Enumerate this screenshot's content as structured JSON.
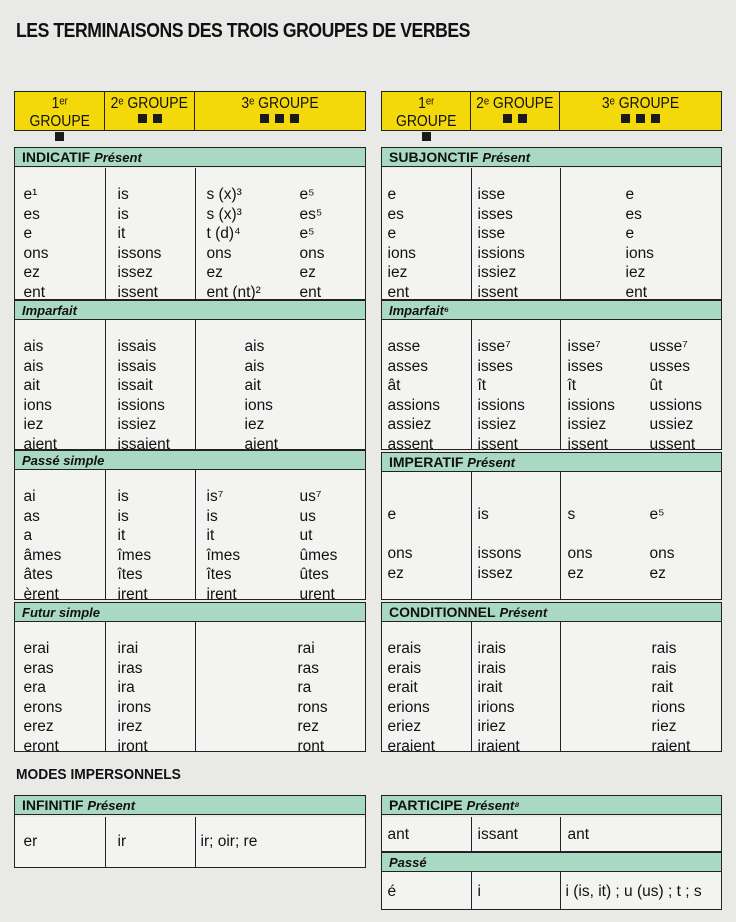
{
  "title": "LES TERMINAISONS DES TROIS GROUPES DE VERBES",
  "impersonal_title": "MODES IMPERSONNELS",
  "colors": {
    "group_header": "#f4d90a",
    "section_header": "#a9d9c3",
    "border": "#222222"
  },
  "groups": [
    {
      "label": "1ᵉʳ GROUPE",
      "squares": 1
    },
    {
      "label": "2ᵉ GROUPE",
      "squares": 2
    },
    {
      "label": "3ᵉ GROUPE",
      "squares": 3
    }
  ],
  "left": [
    {
      "mode": "INDICATIF",
      "tense": "Présent",
      "rows": [
        [
          "e¹",
          "is",
          "s (x)³",
          "e⁵"
        ],
        [
          "es",
          "is",
          "s (x)³",
          "es⁵"
        ],
        [
          "e",
          "it",
          "t (d)⁴",
          "e⁵"
        ],
        [
          "ons",
          "issons",
          "ons",
          "ons"
        ],
        [
          "ez",
          "issez",
          "ez",
          "ez"
        ],
        [
          "ent",
          "issent",
          "ent (nt)²",
          "ent"
        ]
      ]
    },
    {
      "mode": "",
      "tense": "Imparfait",
      "rows": [
        [
          "ais",
          "issais",
          "ais",
          ""
        ],
        [
          "ais",
          "issais",
          "ais",
          ""
        ],
        [
          "ait",
          "issait",
          "ait",
          ""
        ],
        [
          "ions",
          "issions",
          "ions",
          ""
        ],
        [
          "iez",
          "issiez",
          "iez",
          ""
        ],
        [
          "aient",
          "issaient",
          "aient",
          ""
        ]
      ]
    },
    {
      "mode": "",
      "tense": "Passé simple",
      "rows": [
        [
          "ai",
          "is",
          "is⁷",
          "us⁷"
        ],
        [
          "as",
          "is",
          "is",
          "us"
        ],
        [
          "a",
          "it",
          "it",
          "ut"
        ],
        [
          "âmes",
          "îmes",
          "îmes",
          "ûmes"
        ],
        [
          "âtes",
          "îtes",
          "îtes",
          "ûtes"
        ],
        [
          "èrent",
          "irent",
          "irent",
          "urent"
        ]
      ]
    },
    {
      "mode": "",
      "tense": "Futur simple",
      "rows": [
        [
          "erai",
          "irai",
          "",
          "rai"
        ],
        [
          "eras",
          "iras",
          "",
          "ras"
        ],
        [
          "era",
          "ira",
          "",
          "ra"
        ],
        [
          "erons",
          "irons",
          "",
          "rons"
        ],
        [
          "erez",
          "irez",
          "",
          "rez"
        ],
        [
          "eront",
          "iront",
          "",
          "ront"
        ]
      ]
    },
    {
      "mode": "INFINITIF",
      "tense": "Présent",
      "rows": [
        [
          "er",
          "ir",
          "ir; oir; re",
          ""
        ]
      ]
    }
  ],
  "right": [
    {
      "mode": "SUBJONCTIF",
      "tense": "Présent",
      "rows": [
        [
          "e",
          "isse",
          "e",
          ""
        ],
        [
          "es",
          "isses",
          "es",
          ""
        ],
        [
          "e",
          "isse",
          "e",
          ""
        ],
        [
          "ions",
          "issions",
          "ions",
          ""
        ],
        [
          "iez",
          "issiez",
          "iez",
          ""
        ],
        [
          "ent",
          "issent",
          "ent",
          ""
        ]
      ]
    },
    {
      "mode": "",
      "tense": "Imparfait⁶",
      "rows": [
        [
          "asse",
          "isse⁷",
          "isse⁷",
          "usse⁷"
        ],
        [
          "asses",
          "isses",
          "isses",
          "usses"
        ],
        [
          "ât",
          "ît",
          "ît",
          "ût"
        ],
        [
          "assions",
          "issions",
          "issions",
          "ussions"
        ],
        [
          "assiez",
          "issiez",
          "issiez",
          "ussiez"
        ],
        [
          "assent",
          "issent",
          "issent",
          "ussent"
        ]
      ]
    },
    {
      "mode": "IMPERATIF",
      "tense": "Présent",
      "rows": [
        [
          "e",
          "is",
          "s",
          "e⁵"
        ],
        [
          "",
          "",
          "",
          ""
        ],
        [
          "ons",
          "issons",
          "ons",
          "ons"
        ],
        [
          "ez",
          "issez",
          "ez",
          "ez"
        ]
      ]
    },
    {
      "mode": "CONDITIONNEL",
      "tense": "Présent",
      "rows": [
        [
          "erais",
          "irais",
          "",
          "rais"
        ],
        [
          "erais",
          "irais",
          "",
          "rais"
        ],
        [
          "erait",
          "irait",
          "",
          "rait"
        ],
        [
          "erions",
          "irions",
          "",
          "rions"
        ],
        [
          "eriez",
          "iriez",
          "",
          "riez"
        ],
        [
          "eraient",
          "iraient",
          "",
          "raient"
        ]
      ]
    },
    {
      "mode": "PARTICIPE",
      "tense": "Présent⁸",
      "rows": [
        [
          "ant",
          "issant",
          "ant",
          ""
        ]
      ]
    },
    {
      "mode": "",
      "tense": "Passé",
      "rows": [
        [
          "é",
          "i",
          "i (is, it) ; u (us) ; t ; s",
          ""
        ]
      ]
    }
  ]
}
